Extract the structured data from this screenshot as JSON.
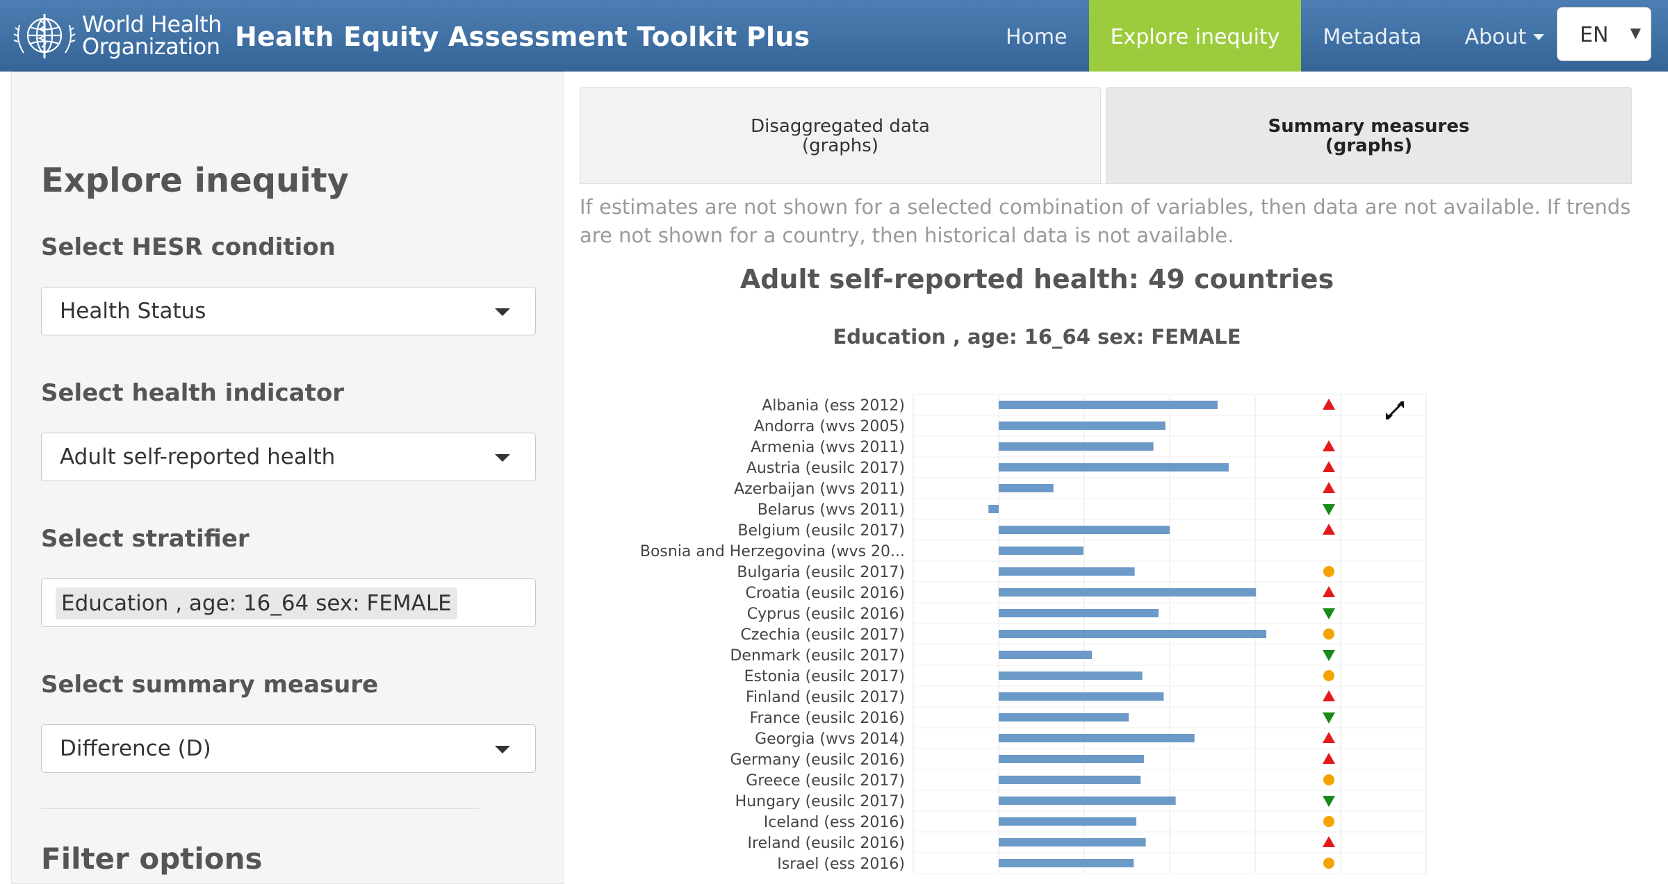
{
  "header": {
    "logo_line1": "World Health",
    "logo_line2": "Organization",
    "app_title": "Health Equity Assessment Toolkit Plus",
    "nav": [
      {
        "label": "Home",
        "active": false
      },
      {
        "label": "Explore inequity",
        "active": true
      },
      {
        "label": "Metadata",
        "active": false
      },
      {
        "label": "About",
        "active": false,
        "dropdown": true
      }
    ],
    "language": "EN",
    "colors": {
      "navbar": "#3e6fa4",
      "active_nav": "#9ccc3d"
    }
  },
  "sidebar": {
    "heading": "Explore inequity",
    "hesr_label": "Select HESR condition",
    "hesr_value": "Health Status",
    "indicator_label": "Select health indicator",
    "indicator_value": "Adult self-reported health",
    "stratifier_label": "Select stratifier",
    "stratifier_value": "Education , age: 16_64 sex: FEMALE",
    "measure_label": "Select summary measure",
    "measure_value": "Difference (D)",
    "filter_heading": "Filter options"
  },
  "main": {
    "tabs": [
      {
        "line1": "Disaggregated data",
        "line2": "(graphs)",
        "active": false
      },
      {
        "line1": "Summary measures",
        "line2": "(graphs)",
        "active": true
      }
    ],
    "notice": "If estimates are not shown for a selected combination of variables, then data are not available. If trends are not shown for a country, then historical data is not available.",
    "chart_title": "Adult self-reported health: 49 countries",
    "chart_subtitle": "Education , age: 16_64 sex: FEMALE"
  },
  "chart_data": {
    "type": "bar",
    "orientation": "horizontal",
    "bar_color": "#6c9ac8",
    "grid": true,
    "trend_colors": {
      "up": "#e31a1c",
      "down": "#1a8a1a",
      "neutral": "#f5a300"
    },
    "categories": [
      "Albania (ess 2012)",
      "Andorra (wvs 2005)",
      "Armenia (wvs 2011)",
      "Austria (eusilc 2017)",
      "Azerbaijan (wvs 2011)",
      "Belarus (wvs 2011)",
      "Belgium (eusilc 2017)",
      "Bosnia and Herzegovina (wvs 20...",
      "Bulgaria (eusilc 2017)",
      "Croatia (eusilc 2016)",
      "Cyprus (eusilc 2016)",
      "Czechia (eusilc 2017)",
      "Denmark (eusilc 2017)",
      "Estonia (eusilc 2017)",
      "Finland (eusilc 2017)",
      "France (eusilc 2016)",
      "Georgia (wvs 2014)",
      "Germany (eusilc 2016)",
      "Greece (eusilc 2017)",
      "Hungary (eusilc 2017)",
      "Iceland (ess 2016)",
      "Ireland (eusilc 2016)",
      "Israel (ess 2016)"
    ],
    "values": [
      25.6,
      19.5,
      18.1,
      26.9,
      6.4,
      -1.2,
      20.0,
      9.9,
      15.9,
      30.1,
      18.7,
      31.3,
      10.9,
      16.8,
      19.3,
      15.2,
      22.9,
      17.0,
      16.6,
      20.7,
      16.1,
      17.2,
      15.8
    ],
    "trends": [
      "up",
      "none",
      "up",
      "up",
      "up",
      "down",
      "up",
      "none",
      "neutral",
      "up",
      "down",
      "neutral",
      "down",
      "neutral",
      "up",
      "down",
      "up",
      "up",
      "neutral",
      "down",
      "neutral",
      "up",
      "neutral"
    ],
    "xlim": [
      -10,
      50
    ]
  }
}
